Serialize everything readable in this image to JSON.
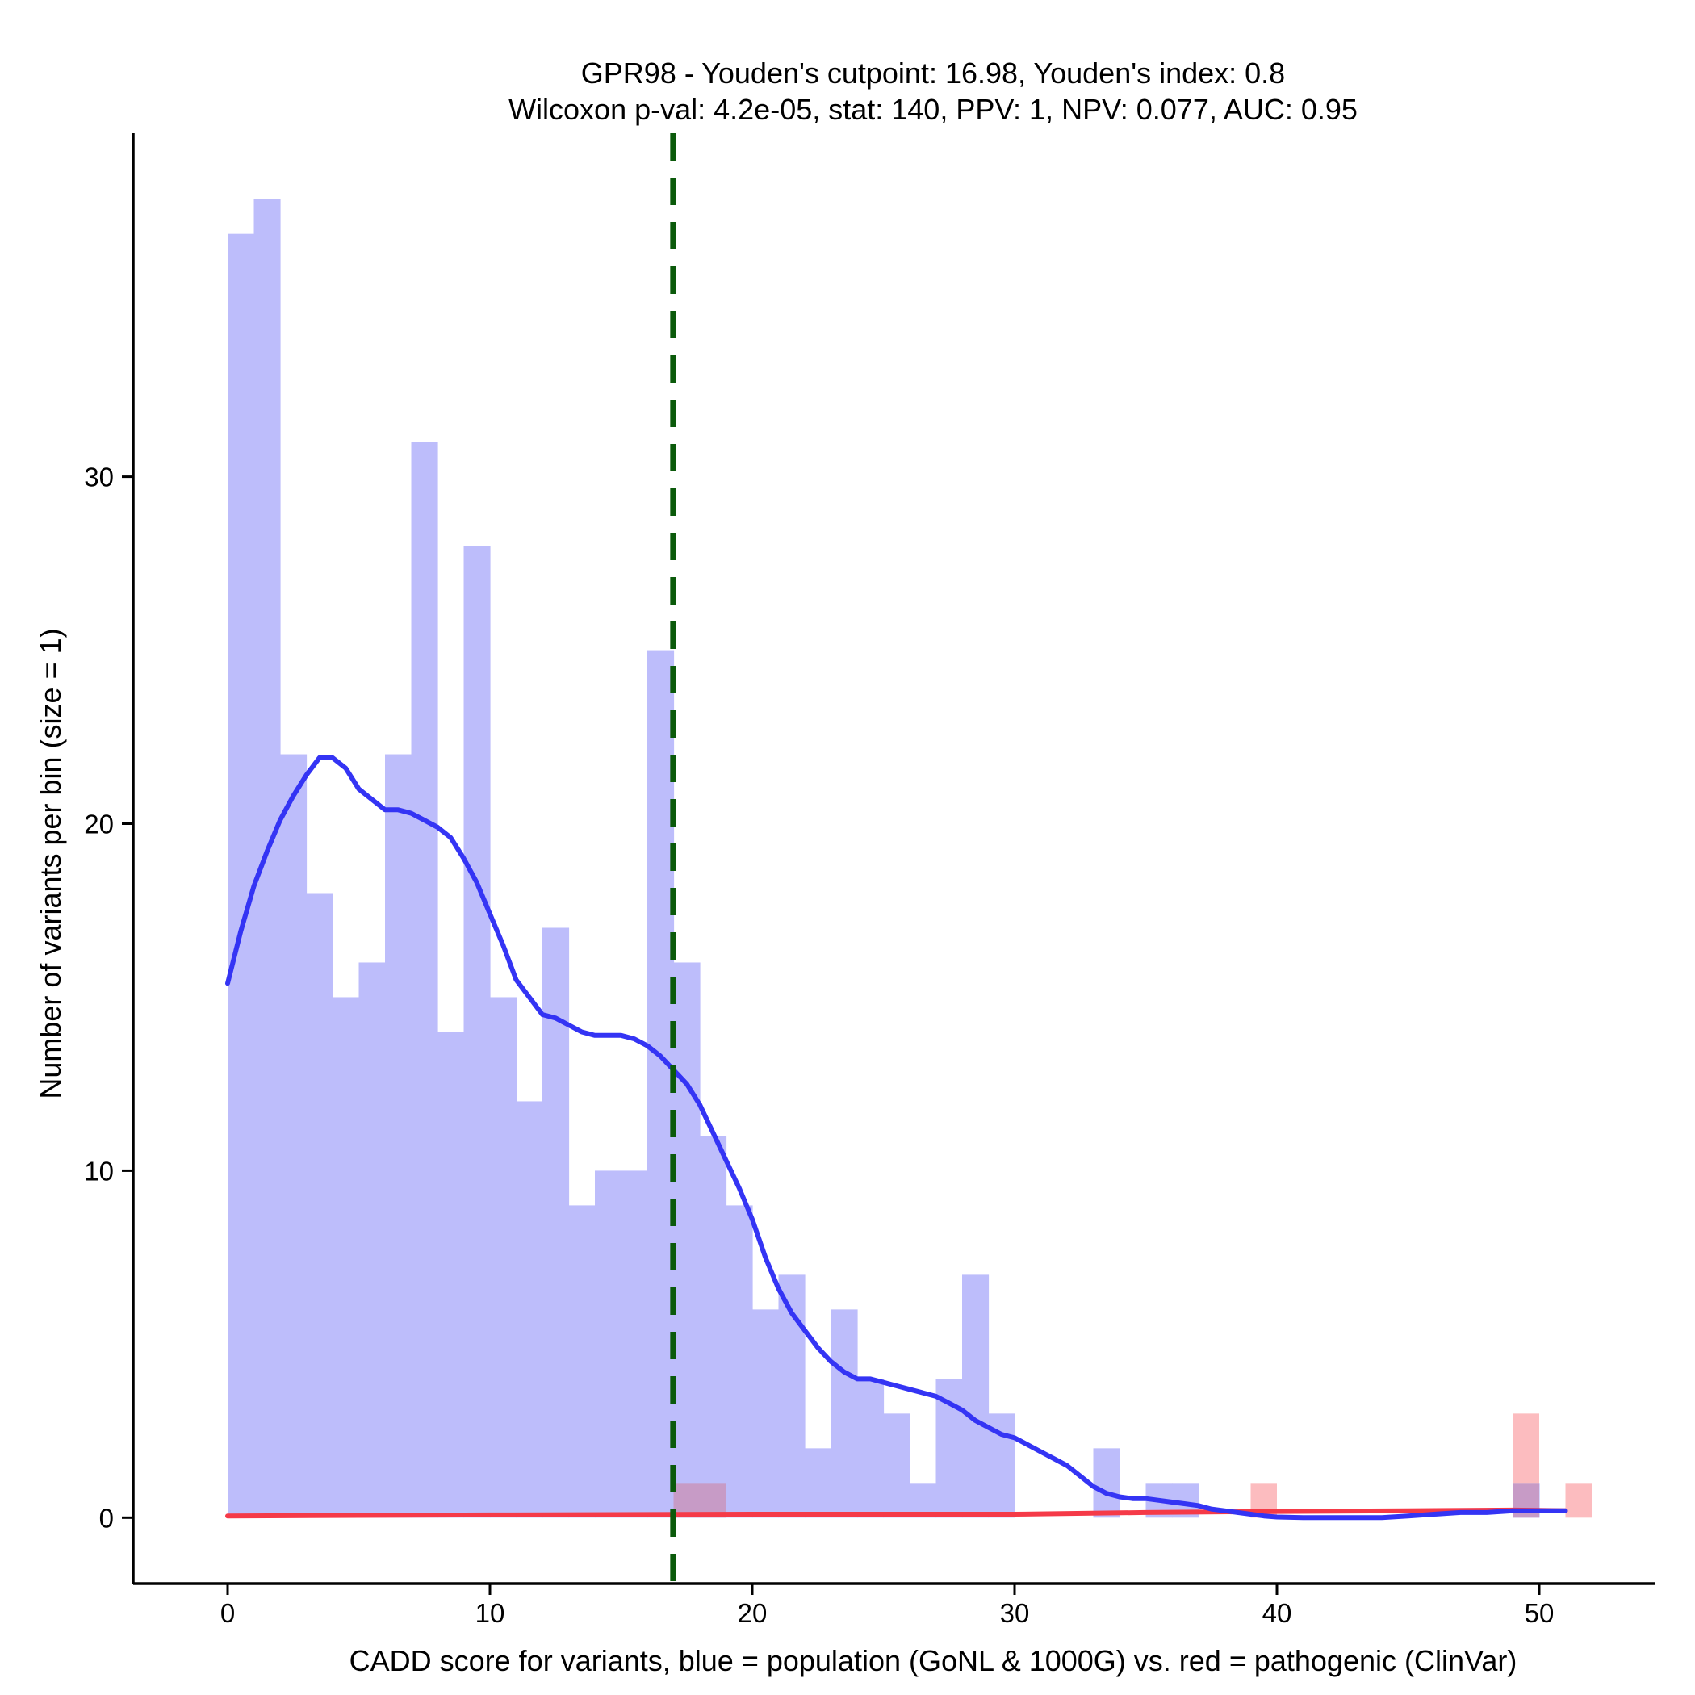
{
  "chart_data": {
    "type": "bar",
    "title_line1": "GPR98 - Youden's cutpoint: 16.98, Youden's index: 0.8",
    "title_line2": "Wilcoxon p-val: 4.2e-05, stat: 140, PPV: 1, NPV: 0.077, AUC: 0.95",
    "xlabel": "CADD score for variants, blue = population (GoNL & 1000G) vs. red = pathogenic (ClinVar)",
    "ylabel": "Number of variants per bin (size = 1)",
    "xlim": [
      -3.6,
      54.4
    ],
    "ylim": [
      -1.9,
      39.9
    ],
    "xticks": [
      0,
      10,
      20,
      30,
      40,
      50
    ],
    "yticks": [
      0,
      10,
      20,
      30
    ],
    "bin_width": 1,
    "cutpoint": 16.98,
    "colors": {
      "population_bar": "#bdbdfb",
      "pathogenic_bar": "#fcbcbf",
      "overlap_bar": "#c79bc6",
      "population_line": "#3434f4",
      "pathogenic_line": "#f53a48",
      "cutpoint_line": "#0b5a0b"
    },
    "series": [
      {
        "name": "population (GoNL & 1000G)",
        "bins": [
          [
            0,
            37
          ],
          [
            1,
            38
          ],
          [
            2,
            22
          ],
          [
            3,
            18
          ],
          [
            4,
            15
          ],
          [
            5,
            16
          ],
          [
            6,
            22
          ],
          [
            7,
            31
          ],
          [
            8,
            14
          ],
          [
            9,
            28
          ],
          [
            10,
            15
          ],
          [
            11,
            12
          ],
          [
            12,
            17
          ],
          [
            13,
            9
          ],
          [
            14,
            10
          ],
          [
            15,
            10
          ],
          [
            16,
            25
          ],
          [
            17,
            16
          ],
          [
            18,
            11
          ],
          [
            19,
            9
          ],
          [
            20,
            6
          ],
          [
            21,
            7
          ],
          [
            22,
            2
          ],
          [
            23,
            6
          ],
          [
            24,
            4
          ],
          [
            25,
            3
          ],
          [
            26,
            1
          ],
          [
            27,
            4
          ],
          [
            28,
            7
          ],
          [
            29,
            3
          ],
          [
            33,
            2
          ],
          [
            35,
            1
          ],
          [
            36,
            1
          ],
          [
            49,
            1
          ]
        ],
        "density_curve": [
          [
            0,
            15.4
          ],
          [
            0.5,
            16.9
          ],
          [
            1,
            18.2
          ],
          [
            1.5,
            19.2
          ],
          [
            2,
            20.1
          ],
          [
            2.5,
            20.8
          ],
          [
            3,
            21.4
          ],
          [
            3.5,
            21.9
          ],
          [
            4,
            21.9
          ],
          [
            4.5,
            21.6
          ],
          [
            5,
            21.0
          ],
          [
            5.5,
            20.7
          ],
          [
            6,
            20.4
          ],
          [
            6.5,
            20.4
          ],
          [
            7,
            20.3
          ],
          [
            7.5,
            20.1
          ],
          [
            8,
            19.9
          ],
          [
            8.5,
            19.6
          ],
          [
            9,
            19.0
          ],
          [
            9.5,
            18.3
          ],
          [
            10,
            17.4
          ],
          [
            10.5,
            16.5
          ],
          [
            11,
            15.5
          ],
          [
            11.5,
            15.0
          ],
          [
            12,
            14.5
          ],
          [
            12.5,
            14.4
          ],
          [
            13,
            14.2
          ],
          [
            13.5,
            14.0
          ],
          [
            14,
            13.9
          ],
          [
            14.5,
            13.9
          ],
          [
            15,
            13.9
          ],
          [
            15.5,
            13.8
          ],
          [
            16,
            13.6
          ],
          [
            16.5,
            13.3
          ],
          [
            17,
            12.9
          ],
          [
            17.5,
            12.5
          ],
          [
            18,
            11.9
          ],
          [
            18.5,
            11.1
          ],
          [
            19,
            10.3
          ],
          [
            19.5,
            9.5
          ],
          [
            20,
            8.6
          ],
          [
            20.5,
            7.5
          ],
          [
            21,
            6.6
          ],
          [
            21.5,
            5.9
          ],
          [
            22,
            5.4
          ],
          [
            22.5,
            4.9
          ],
          [
            23,
            4.5
          ],
          [
            23.5,
            4.2
          ],
          [
            24,
            4.0
          ],
          [
            24.5,
            4.0
          ],
          [
            25,
            3.9
          ],
          [
            25.5,
            3.8
          ],
          [
            26,
            3.7
          ],
          [
            26.5,
            3.6
          ],
          [
            27,
            3.5
          ],
          [
            27.5,
            3.3
          ],
          [
            28,
            3.1
          ],
          [
            28.5,
            2.8
          ],
          [
            29,
            2.6
          ],
          [
            29.5,
            2.4
          ],
          [
            30,
            2.3
          ],
          [
            30.5,
            2.1
          ],
          [
            31,
            1.9
          ],
          [
            31.5,
            1.7
          ],
          [
            32,
            1.5
          ],
          [
            32.5,
            1.2
          ],
          [
            33,
            0.9
          ],
          [
            33.5,
            0.7
          ],
          [
            34,
            0.6
          ],
          [
            34.5,
            0.55
          ],
          [
            35,
            0.55
          ],
          [
            35.5,
            0.5
          ],
          [
            36,
            0.45
          ],
          [
            36.5,
            0.4
          ],
          [
            37,
            0.35
          ],
          [
            37.5,
            0.25
          ],
          [
            38,
            0.2
          ],
          [
            38.5,
            0.15
          ],
          [
            39,
            0.1
          ],
          [
            39.5,
            0.05
          ],
          [
            40,
            0.02
          ],
          [
            41,
            0.0
          ],
          [
            42,
            0.0
          ],
          [
            43,
            0.0
          ],
          [
            44,
            0.0
          ],
          [
            45,
            0.05
          ],
          [
            46,
            0.1
          ],
          [
            47,
            0.15
          ],
          [
            48,
            0.15
          ],
          [
            49,
            0.2
          ],
          [
            50,
            0.2
          ],
          [
            51,
            0.2
          ]
        ]
      },
      {
        "name": "pathogenic (ClinVar)",
        "bins": [
          [
            17,
            1
          ],
          [
            18,
            1
          ],
          [
            39,
            1
          ],
          [
            49,
            3
          ],
          [
            51,
            1
          ]
        ],
        "density_curve": [
          [
            0,
            0.05
          ],
          [
            10,
            0.08
          ],
          [
            20,
            0.1
          ],
          [
            30,
            0.1
          ],
          [
            35,
            0.15
          ],
          [
            40,
            0.18
          ],
          [
            45,
            0.2
          ],
          [
            49,
            0.22
          ],
          [
            51,
            0.2
          ]
        ]
      }
    ]
  }
}
